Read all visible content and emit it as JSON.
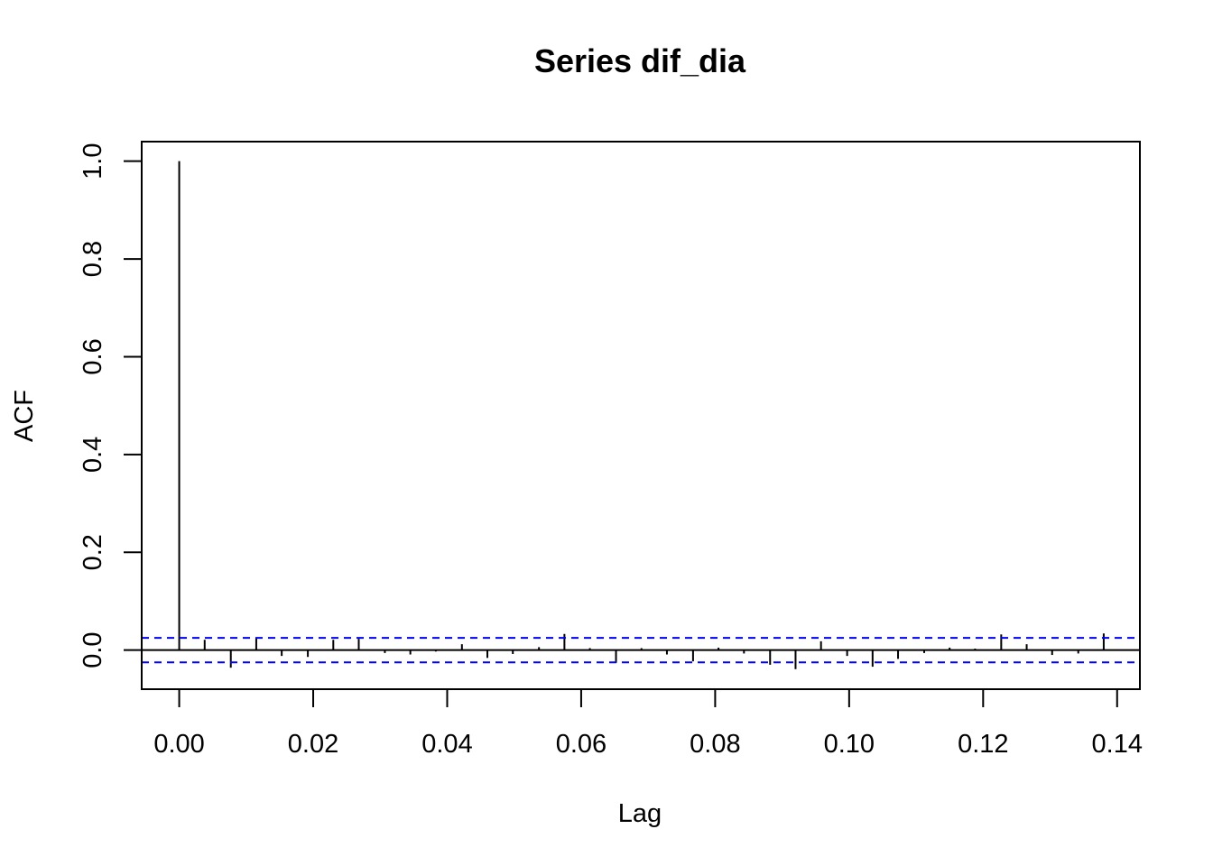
{
  "chart_data": {
    "type": "bar",
    "title": "Series  dif_dia",
    "xlabel": "Lag",
    "ylabel": "ACF",
    "xlim": [
      -0.0056,
      0.1434
    ],
    "ylim": [
      -0.08,
      1.04
    ],
    "x_ticks": [
      0,
      0.02,
      0.04,
      0.06,
      0.08,
      0.1,
      0.12,
      0.14
    ],
    "x_tick_labels": [
      "0.00",
      "0.02",
      "0.04",
      "0.06",
      "0.08",
      "0.10",
      "0.12",
      "0.14"
    ],
    "y_ticks": [
      0,
      0.2,
      0.4,
      0.6,
      0.8,
      1.0
    ],
    "y_tick_labels": [
      "0.0",
      "0.2",
      "0.4",
      "0.6",
      "0.8",
      "1.0"
    ],
    "confidence_bounds": [
      0.025,
      -0.025
    ],
    "confidence_color": "#0000ff",
    "bar_color": "#000000",
    "series": [
      {
        "x": [
          0,
          0.0038,
          0.0077,
          0.0115,
          0.0153,
          0.0192,
          0.023,
          0.0268,
          0.0307,
          0.0345,
          0.0383,
          0.0422,
          0.046,
          0.0498,
          0.0537,
          0.0575,
          0.0613,
          0.0652,
          0.069,
          0.0728,
          0.0767,
          0.0805,
          0.0843,
          0.0882,
          0.092,
          0.0958,
          0.0997,
          0.1035,
          0.1073,
          0.1112,
          0.115,
          0.1188,
          0.1227,
          0.1265,
          0.1303,
          0.1342,
          0.138
        ],
        "values": [
          1.0,
          0.021,
          -0.036,
          0.026,
          -0.012,
          -0.014,
          0.021,
          0.023,
          -0.006,
          -0.009,
          -0.003,
          0.012,
          -0.016,
          -0.008,
          0.006,
          0.033,
          0.004,
          -0.026,
          0.004,
          -0.009,
          -0.023,
          0.005,
          -0.007,
          -0.03,
          -0.039,
          0.018,
          -0.012,
          -0.034,
          -0.018,
          -0.006,
          0.005,
          0.003,
          0.032,
          0.012,
          -0.01,
          -0.007,
          0.034
        ]
      }
    ]
  }
}
